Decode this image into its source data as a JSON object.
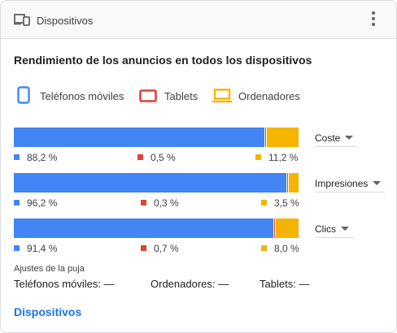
{
  "header": {
    "title": "Dispositivos",
    "icon": "devices-icon"
  },
  "title": "Rendimiento de los anuncios en todos los dispositivos",
  "colors": {
    "mobile": "#4285f4",
    "tablet": "#db4437",
    "desktop": "#f4b400"
  },
  "legend": [
    {
      "label": "Teléfonos móviles",
      "icon": "smartphone-icon"
    },
    {
      "label": "Tablets",
      "icon": "tablet-icon"
    },
    {
      "label": "Ordenadores",
      "icon": "laptop-icon"
    }
  ],
  "rows": [
    {
      "metric": "Coste",
      "mobile": 88.2,
      "tablet": 0.5,
      "desktop": 11.2,
      "mobile_label": "88,2 %",
      "tablet_label": "0,5 %",
      "desktop_label": "11,2 %"
    },
    {
      "metric": "Impresiones",
      "mobile": 96.2,
      "tablet": 0.3,
      "desktop": 3.5,
      "mobile_label": "96,2 %",
      "tablet_label": "0,3 %",
      "desktop_label": "3,5 %"
    },
    {
      "metric": "Clics",
      "mobile": 91.4,
      "tablet": 0.7,
      "desktop": 8.0,
      "mobile_label": "91,4 %",
      "tablet_label": "0,7 %",
      "desktop_label": "8,0 %"
    }
  ],
  "bid_adjustments": {
    "label": "Ajustes de la puja",
    "mobile": "Teléfonos móviles: —",
    "desktop": "Ordenadores: —",
    "tablet": "Tablets: —"
  },
  "footer_link": "Dispositivos"
}
